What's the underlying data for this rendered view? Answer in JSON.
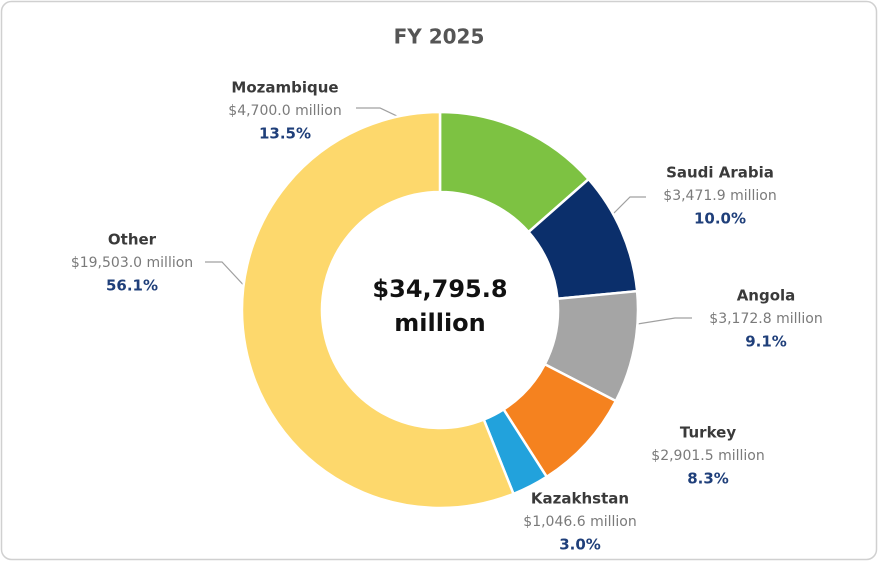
{
  "chart_data": {
    "type": "donut",
    "title": "FY 2025",
    "categories": [
      "Mozambique",
      "Saudi Arabia",
      "Angola",
      "Turkey",
      "Kazakhstan",
      "Other"
    ],
    "values": [
      4700.0,
      3471.9,
      3172.8,
      2901.5,
      1046.6,
      19503.0
    ],
    "value_labels": [
      "$4,700.0 million",
      "$3,471.9 million",
      "$3,172.8 million",
      "$2,901.5 million",
      "$1,046.6 million",
      "$19,503.0 million"
    ],
    "percent_labels": [
      "13.5%",
      "10.0%",
      "9.1%",
      "8.3%",
      "3.0%",
      "56.1%"
    ],
    "colors": [
      "#7dc242",
      "#0b2f6b",
      "#a5a5a5",
      "#f5821f",
      "#22a2dc",
      "#fdd86c"
    ],
    "center_label": [
      "$34,795.8",
      "million"
    ]
  }
}
